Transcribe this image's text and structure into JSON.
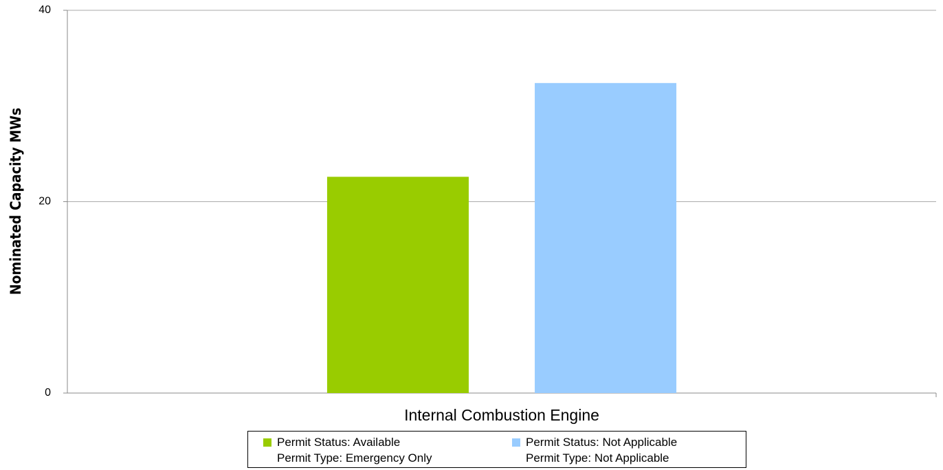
{
  "chart_data": {
    "type": "bar",
    "y_label": "Nominated Capacity MWs",
    "categories": [
      "Internal Combustion Engine"
    ],
    "series": [
      {
        "name": "Permit Status: Available\nPermit Type: Emergency Only",
        "color": "#99cc00",
        "values": [
          22.6
        ]
      },
      {
        "name": "Permit Status: Not Applicable\nPermit Type: Not Applicable",
        "color": "#99ccff",
        "values": [
          32.4
        ]
      }
    ],
    "ylim": [
      0,
      40
    ],
    "yticks": [
      0,
      20,
      40
    ],
    "grid": true
  }
}
